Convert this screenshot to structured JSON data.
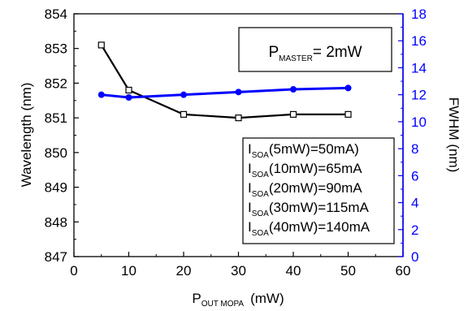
{
  "chart_data": {
    "type": "line",
    "x": [
      5,
      10,
      20,
      30,
      40,
      50
    ],
    "xlim": [
      0,
      60
    ],
    "x_ticks": [
      "0",
      "10",
      "20",
      "30",
      "40",
      "50",
      "60"
    ],
    "xlabel": {
      "main": "P",
      "sub": "OUT MOPA",
      "unit": "(mW)"
    },
    "y_left": {
      "label": "Wavelength (nm)",
      "lim": [
        847,
        854
      ],
      "ticks": [
        "847",
        "848",
        "849",
        "850",
        "851",
        "852",
        "853",
        "854"
      ]
    },
    "y_right": {
      "label": "FWHM (nm)",
      "lim": [
        0,
        18
      ],
      "ticks": [
        "0",
        "2",
        "4",
        "6",
        "8",
        "10",
        "12",
        "14",
        "16",
        "18"
      ],
      "color": "#0000ff"
    },
    "series": [
      {
        "axis": "left",
        "color": "#000000",
        "marker": "open-square",
        "values": [
          853.1,
          851.8,
          851.1,
          851.0,
          851.1,
          851.1
        ]
      },
      {
        "axis": "right",
        "color": "#0000ff",
        "marker": "filled-circle",
        "values": [
          12.0,
          11.8,
          12.0,
          12.2,
          12.4,
          12.5
        ]
      }
    ],
    "annotations": {
      "master": {
        "main": "P",
        "sub": "MASTER",
        "rest": "= 2mW"
      },
      "soa_currents": [
        {
          "main": "I",
          "sub": "SOA",
          "rest": "(5mW)=50mA)"
        },
        {
          "main": "I",
          "sub": "SOA",
          "rest": "(10mW)=65mA"
        },
        {
          "main": "I",
          "sub": "SOA",
          "rest": "(20mW)=90mA"
        },
        {
          "main": "I",
          "sub": "SOA",
          "rest": "(30mW)=115mA"
        },
        {
          "main": "I",
          "sub": "SOA",
          "rest": "(40mW)=140mA"
        }
      ]
    },
    "grid": false,
    "legend": "none"
  }
}
